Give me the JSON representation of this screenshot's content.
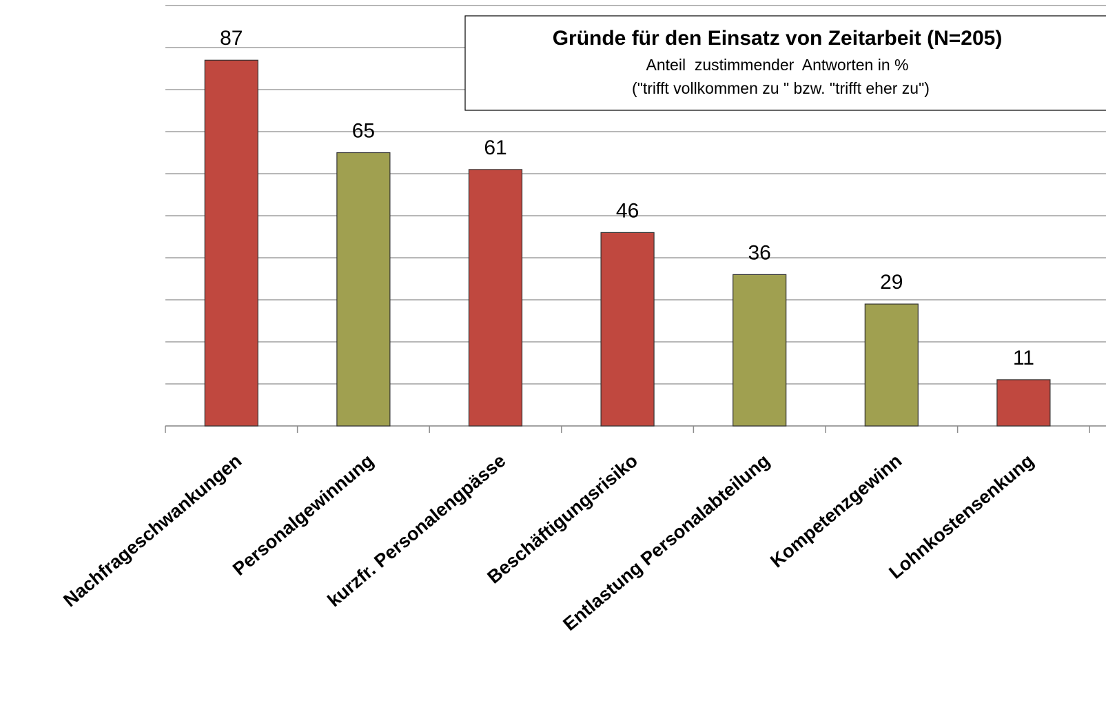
{
  "chart_data": {
    "type": "bar",
    "title": "Gründe für den Einsatz von Zeitarbeit (N=205)",
    "subtitle": [
      "Anteil  zustimmender  Antworten in %",
      "(\"trifft vollkommen zu \" bzw. \"trifft eher zu\")"
    ],
    "categories": [
      "Nachfrageschwankungen",
      "Personalgewinnung",
      "kurzfr. Personalengpässe",
      "Beschäftigungsrisiko",
      "Entlastung Personalabteilung",
      "Kompetenzgewinn",
      "Lohnkostensenkung"
    ],
    "values": [
      87,
      65,
      61,
      46,
      36,
      29,
      11
    ],
    "colors": [
      "#c0483f",
      "#a0a050",
      "#c0483f",
      "#c0483f",
      "#a0a050",
      "#a0a050",
      "#c0483f"
    ],
    "ylim": [
      0,
      100
    ],
    "yticks": [
      0,
      10,
      20,
      30,
      40,
      50,
      60,
      70,
      80,
      90,
      100
    ],
    "grid": true
  }
}
